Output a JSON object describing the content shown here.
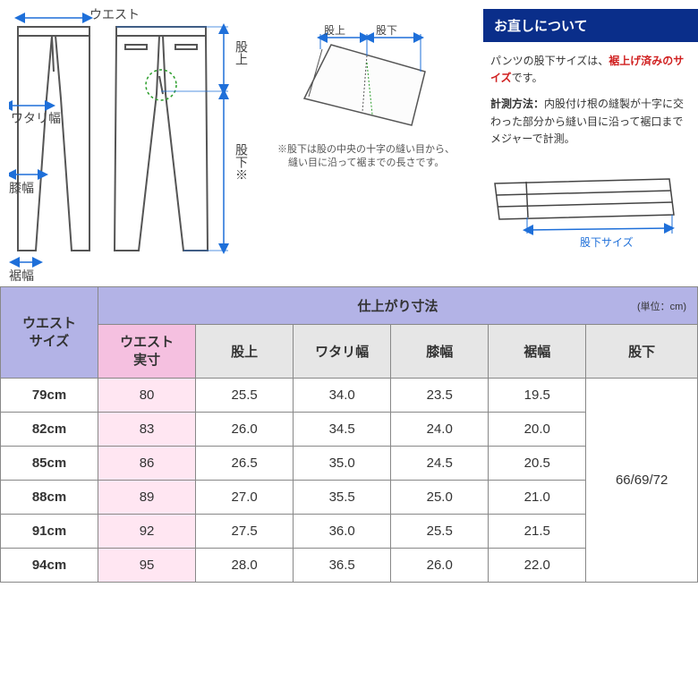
{
  "diagram": {
    "labels": {
      "waist": "ウエスト",
      "thigh": "ワタリ幅",
      "knee": "膝幅",
      "hem": "裾幅",
      "rise": "股上",
      "inseam": "股下※",
      "riseShort": "股上",
      "inseamShort": "股下",
      "inseamSize": "股下サイズ"
    },
    "noteTitle": "※股下は股の中央の十字の縫い目から、",
    "noteBody": "縫い目に沿って裾までの長さです。"
  },
  "info": {
    "headerTitle": "お直しについて",
    "line1a": "パンツの股下サイズは、",
    "line1b": "裾上げ済みのサイズ",
    "line1c": "です。",
    "line2a": "計測方法：",
    "line2b": "内股付け根の縫製が十字に交わった部分から縫い目に沿って裾口までメジャーで計測。"
  },
  "table": {
    "waistSizeHeader": "ウエストサイズ",
    "finishHeader": "仕上がり寸法",
    "unit": "(単位：cm)",
    "waistActualHeader": "ウエスト実寸",
    "columns": [
      "股上",
      "ワタリ幅",
      "膝幅",
      "裾幅",
      "股下"
    ],
    "rows": [
      {
        "size": "79cm",
        "actual": "80",
        "vals": [
          "25.5",
          "34.0",
          "23.5",
          "19.5"
        ]
      },
      {
        "size": "82cm",
        "actual": "83",
        "vals": [
          "26.0",
          "34.5",
          "24.0",
          "20.0"
        ]
      },
      {
        "size": "85cm",
        "actual": "86",
        "vals": [
          "26.5",
          "35.0",
          "24.5",
          "20.5"
        ]
      },
      {
        "size": "88cm",
        "actual": "89",
        "vals": [
          "27.0",
          "35.5",
          "25.0",
          "21.0"
        ]
      },
      {
        "size": "91cm",
        "actual": "92",
        "vals": [
          "27.5",
          "36.0",
          "25.5",
          "21.5"
        ]
      },
      {
        "size": "94cm",
        "actual": "95",
        "vals": [
          "28.0",
          "36.5",
          "26.0",
          "22.0"
        ]
      }
    ],
    "inseamMerged": "66/69/72"
  },
  "colors": {
    "arrowBlue": "#1e6fd9",
    "dashGreen": "#2a9d2a",
    "headerBlue": "#0a2e8a",
    "headerPurple": "#b3b3e6",
    "pinkHeader": "#f5c0e0",
    "pinkCell": "#ffe6f2",
    "greyHeader": "#e6e6e6"
  }
}
